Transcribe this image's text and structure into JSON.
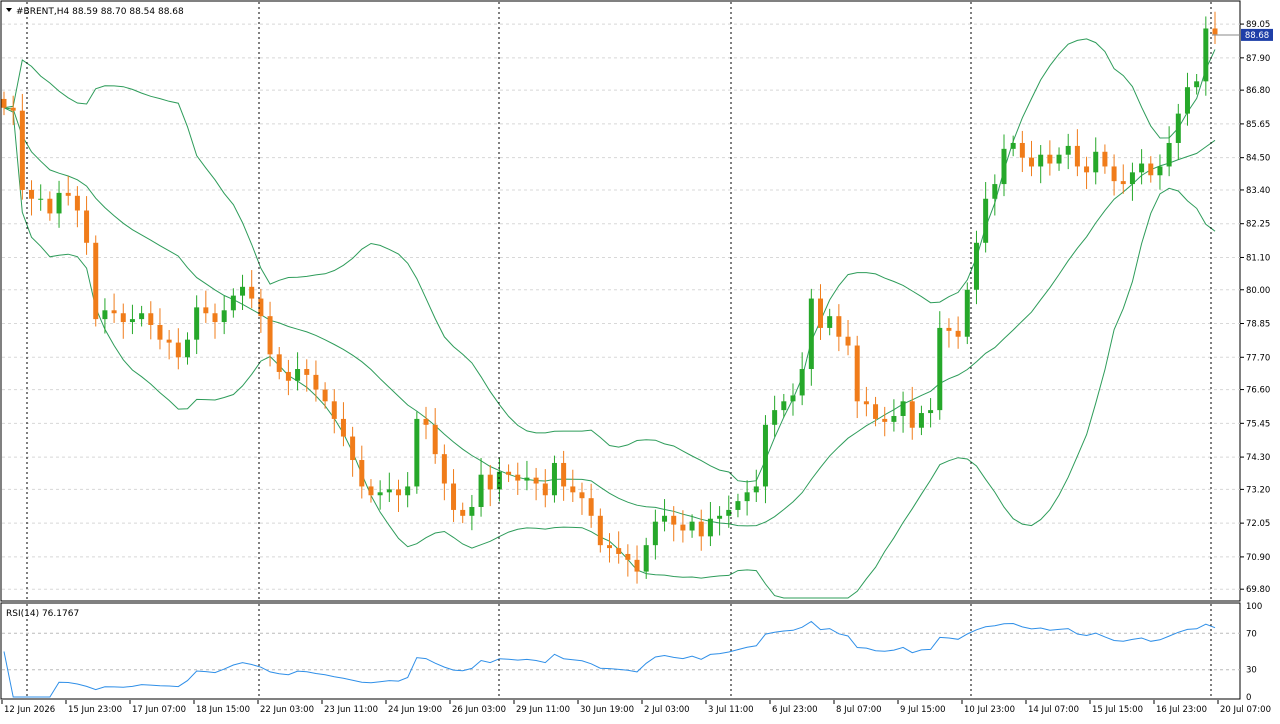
{
  "header": {
    "symbol_info": "#BRENT,H4  88.59 88.70 88.54 88.68"
  },
  "main_panel": {
    "y_ticks": [
      "89.05",
      "87.90",
      "86.80",
      "85.65",
      "84.50",
      "83.40",
      "82.25",
      "81.10",
      "80.00",
      "78.85",
      "77.70",
      "76.60",
      "75.45",
      "74.30",
      "73.20",
      "72.05",
      "70.90",
      "69.80"
    ],
    "current_price_label": "88.68",
    "colors": {
      "bull": "#26a82a",
      "bear": "#f07c1a",
      "bands": "#2e9c5a",
      "grid": "#d8d8d8",
      "price_tag": "#1f3fa8"
    }
  },
  "rsi_panel": {
    "label": "RSI(14) 76.1767",
    "y_ticks": [
      "100",
      "70",
      "30",
      "0"
    ],
    "line_color": "#2f8fe8"
  },
  "time_axis": {
    "labels": [
      "12 Jun 2026",
      "15 Jun 23:00",
      "17 Jun 07:00",
      "18 Jun 15:00",
      "22 Jun 03:00",
      "23 Jun 11:00",
      "24 Jun 19:00",
      "26 Jun 03:00",
      "29 Jun 11:00",
      "30 Jun 19:00",
      "2 Jul 03:00",
      "3 Jul 11:00",
      "6 Jul 23:00",
      "8 Jul 07:00",
      "9 Jul 15:00",
      "10 Jul 23:00",
      "14 Jul 07:00",
      "15 Jul 15:00",
      "16 Jul 23:00",
      "20 Jul 07:00"
    ]
  },
  "chart_data": {
    "type": "candlestick",
    "symbol": "#BRENT",
    "timeframe": "H4",
    "ohlc_last": {
      "open": 88.59,
      "high": 88.7,
      "low": 88.54,
      "close": 88.68
    },
    "close_series": [
      86.2,
      86.1,
      83.4,
      83.1,
      83.1,
      82.6,
      83.3,
      83.2,
      82.7,
      81.6,
      79.0,
      79.3,
      79.2,
      78.9,
      79.0,
      79.2,
      78.8,
      78.3,
      78.2,
      77.7,
      78.3,
      79.4,
      79.2,
      78.9,
      79.3,
      79.8,
      80.1,
      79.7,
      79.1,
      77.8,
      77.2,
      76.9,
      77.3,
      77.1,
      76.6,
      76.2,
      75.6,
      75.0,
      74.2,
      73.3,
      73.0,
      73.1,
      73.2,
      73.0,
      73.3,
      75.6,
      75.4,
      74.4,
      73.4,
      72.5,
      72.3,
      72.6,
      73.7,
      73.2,
      73.8,
      73.7,
      73.5,
      73.6,
      73.4,
      73.0,
      74.1,
      73.3,
      73.1,
      72.9,
      72.3,
      71.3,
      71.2,
      71.0,
      70.8,
      70.4,
      71.3,
      72.1,
      72.3,
      72.0,
      71.8,
      72.1,
      71.6,
      72.2,
      72.3,
      72.5,
      72.8,
      73.1,
      73.3,
      75.4,
      75.9,
      76.2,
      76.4,
      77.3,
      79.7,
      78.7,
      79.1,
      78.4,
      78.1,
      76.2,
      76.1,
      75.6,
      75.5,
      75.7,
      76.2,
      75.3,
      75.8,
      75.9,
      78.7,
      78.6,
      78.4,
      80.0,
      81.6,
      83.1,
      83.6,
      84.8,
      85.0,
      84.5,
      84.2,
      84.6,
      84.3,
      84.6,
      84.9,
      84.2,
      84.0,
      84.7,
      84.2,
      83.7,
      83.6,
      84.0,
      84.3,
      83.9,
      84.2,
      85.0,
      86.0,
      86.9,
      87.1,
      88.9,
      88.7
    ],
    "rsi": {
      "period": 14,
      "value": 76.1767,
      "levels": [
        70,
        30
      ]
    },
    "y_range": [
      69.5,
      89.7
    ]
  }
}
